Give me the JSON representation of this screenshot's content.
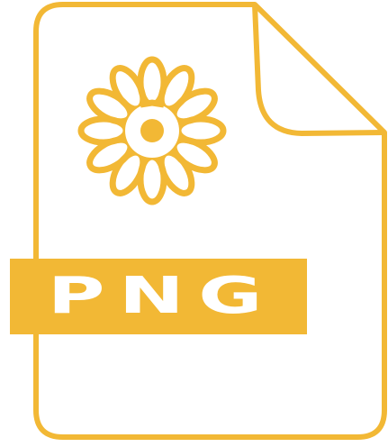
{
  "icon": {
    "name": "png-file-icon",
    "flower_glyph": "flower-icon",
    "badge_label": "PNG"
  },
  "colors": {
    "accent": "#F2B835",
    "background": "#FFFFFF"
  }
}
